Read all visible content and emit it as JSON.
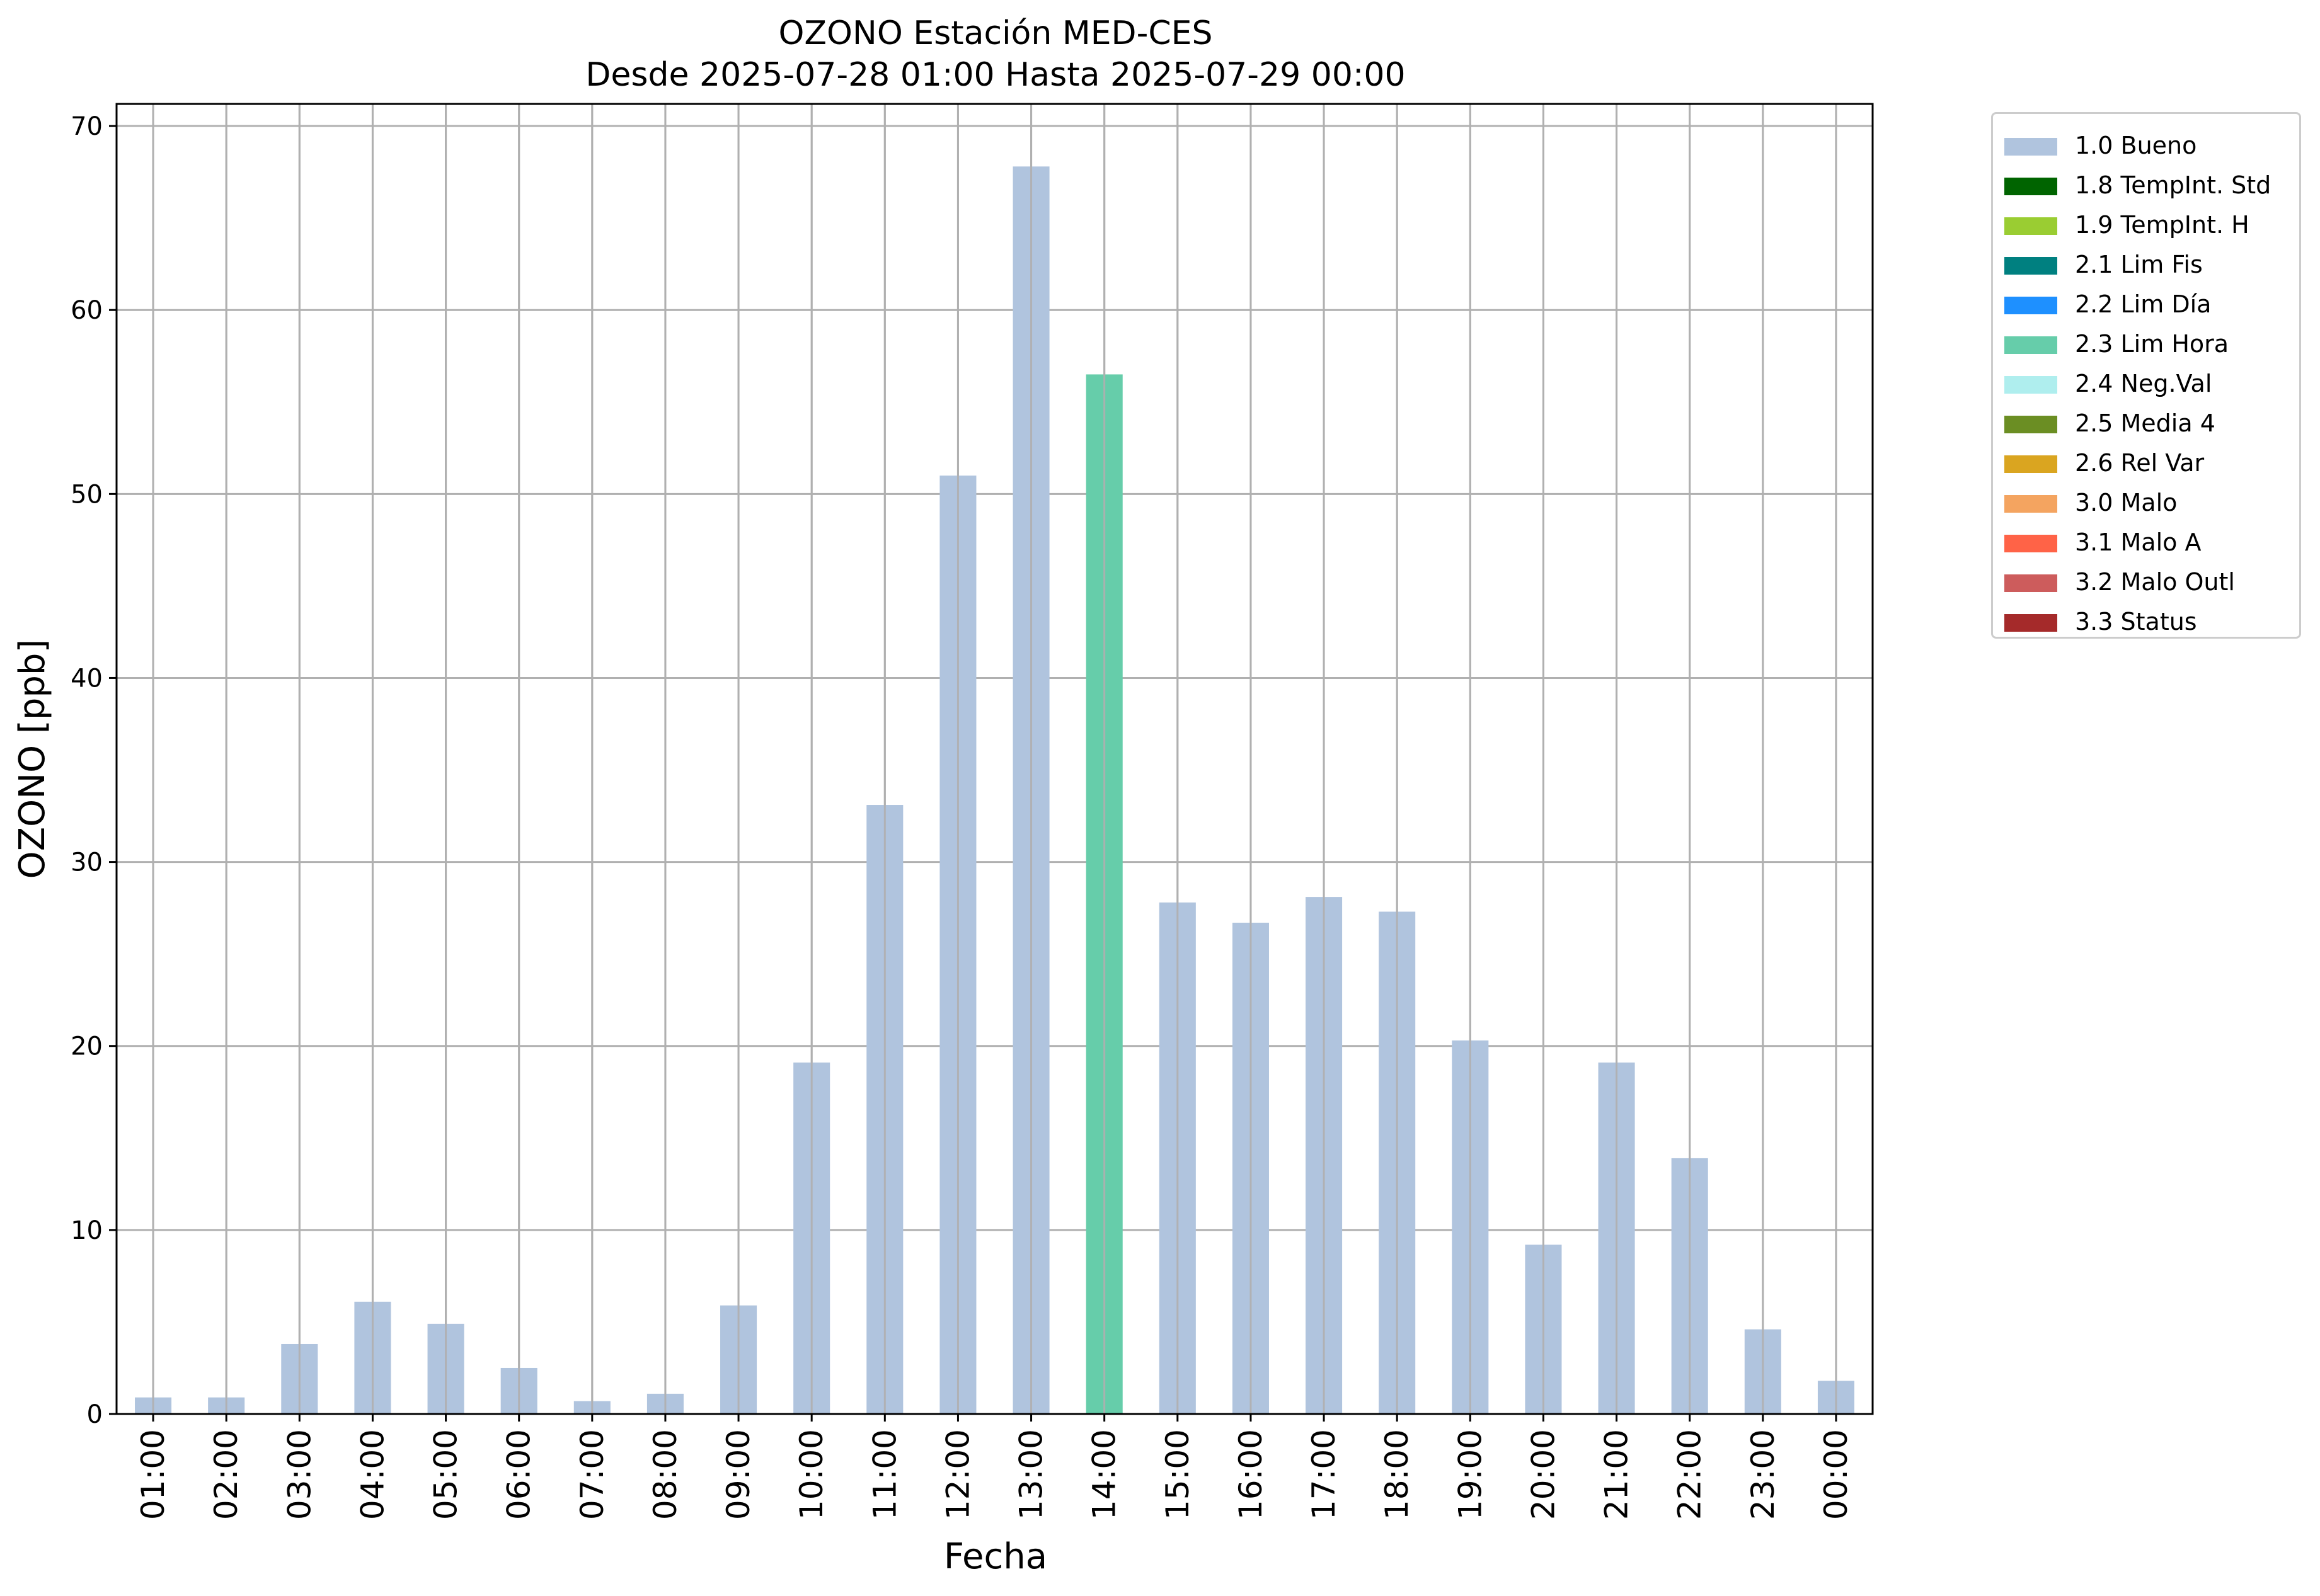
{
  "chart_data": {
    "type": "bar",
    "title_line1": "OZONO Estación MED-CES",
    "title_line2": "Desde 2025-07-28 01:00 Hasta 2025-07-29 00:00",
    "xlabel": "Fecha",
    "ylabel": "OZONO [ppb]",
    "ylim": [
      0,
      71.2
    ],
    "yticks": [
      0,
      10,
      20,
      30,
      40,
      50,
      60,
      70
    ],
    "grid": true,
    "legend_position": "outside-top-right",
    "categories": [
      "01:00",
      "02:00",
      "03:00",
      "04:00",
      "05:00",
      "06:00",
      "07:00",
      "08:00",
      "09:00",
      "10:00",
      "11:00",
      "12:00",
      "13:00",
      "14:00",
      "15:00",
      "16:00",
      "17:00",
      "18:00",
      "19:00",
      "20:00",
      "21:00",
      "22:00",
      "23:00",
      "00:00"
    ],
    "values": [
      0.9,
      0.9,
      3.8,
      6.1,
      4.9,
      2.5,
      0.7,
      1.1,
      5.9,
      19.1,
      33.1,
      51.0,
      67.8,
      56.5,
      27.8,
      26.7,
      28.1,
      27.3,
      20.3,
      9.2,
      19.1,
      13.9,
      4.6,
      1.8
    ],
    "flags": [
      "1.0 Bueno",
      "1.0 Bueno",
      "1.0 Bueno",
      "1.0 Bueno",
      "1.0 Bueno",
      "1.0 Bueno",
      "1.0 Bueno",
      "1.0 Bueno",
      "1.0 Bueno",
      "1.0 Bueno",
      "1.0 Bueno",
      "1.0 Bueno",
      "1.0 Bueno",
      "2.3 Lim Hora",
      "1.0 Bueno",
      "1.0 Bueno",
      "1.0 Bueno",
      "1.0 Bueno",
      "1.0 Bueno",
      "1.0 Bueno",
      "1.0 Bueno",
      "1.0 Bueno",
      "1.0 Bueno",
      "1.0 Bueno"
    ],
    "legend": [
      {
        "label": "1.0 Bueno",
        "color": "#b0c4de"
      },
      {
        "label": "1.8 TempInt. Std",
        "color": "#006400"
      },
      {
        "label": "1.9 TempInt. H",
        "color": "#9acd32"
      },
      {
        "label": "2.1 Lim Fis",
        "color": "#008080"
      },
      {
        "label": "2.2 Lim Día",
        "color": "#1e90ff"
      },
      {
        "label": "2.3 Lim Hora",
        "color": "#66cdaa"
      },
      {
        "label": "2.4 Neg.Val",
        "color": "#afeeee"
      },
      {
        "label": "2.5 Media 4",
        "color": "#6b8e23"
      },
      {
        "label": "2.6 Rel Var",
        "color": "#daa520"
      },
      {
        "label": "3.0 Malo",
        "color": "#f4a460"
      },
      {
        "label": "3.1 Malo A",
        "color": "#ff6347"
      },
      {
        "label": "3.2 Malo Outl",
        "color": "#cd5c5c"
      },
      {
        "label": "3.3 Status",
        "color": "#a52a2a"
      }
    ]
  }
}
